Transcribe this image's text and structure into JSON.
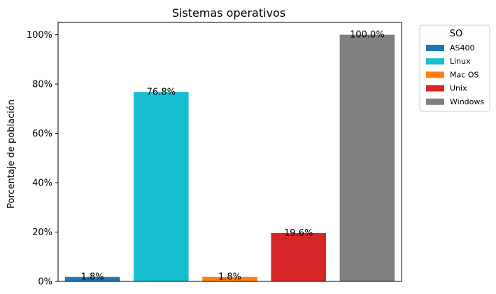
{
  "chart_data": {
    "type": "bar",
    "title": "Sistemas operativos",
    "xlabel": "",
    "ylabel": "Porcentaje de población",
    "ylim": [
      0,
      105
    ],
    "yticks": [
      0,
      20,
      40,
      60,
      80,
      100
    ],
    "ytick_labels": [
      "0%",
      "20%",
      "40%",
      "60%",
      "80%",
      "100%"
    ],
    "categories": [
      "AS400",
      "Linux",
      "Mac OS",
      "Unix",
      "Windows"
    ],
    "values": [
      1.8,
      76.8,
      1.8,
      19.6,
      100.0
    ],
    "value_labels": [
      "1.8%",
      "76.8%",
      "1.8%",
      "19.6%",
      "100.0%"
    ],
    "colors": [
      "#1f77b4",
      "#17becf",
      "#ff7f0e",
      "#d62728",
      "#7f7f7f"
    ],
    "grid": false,
    "legend": {
      "title": "SO",
      "placement": "outside-top-right",
      "entries": [
        "AS400",
        "Linux",
        "Mac OS",
        "Unix",
        "Windows"
      ]
    }
  }
}
